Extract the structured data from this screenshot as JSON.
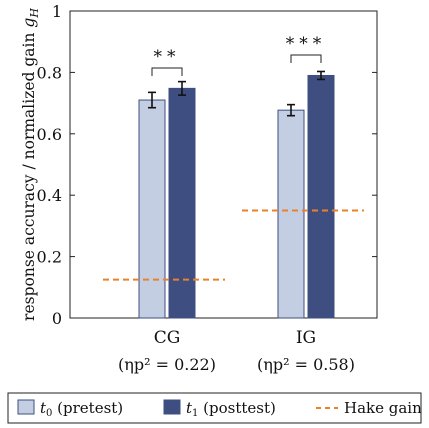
{
  "chart_data": {
    "type": "bar",
    "categories": [
      "CG",
      "IG"
    ],
    "category_notes": [
      "(ηp² = 0.22)",
      "(ηp² = 0.58)"
    ],
    "ylabel": "response accuracy / normalized gain gH",
    "ylim": [
      0,
      1
    ],
    "yticks": [
      0,
      0.2,
      0.4,
      0.6,
      0.8,
      1
    ],
    "ytick_labels": [
      "0",
      "0.2",
      "0.4",
      "0.6",
      "0.8",
      "1"
    ],
    "series": [
      {
        "name": "t0 (pretest)",
        "values": [
          0.71,
          0.677
        ],
        "errors": [
          0.025,
          0.018
        ],
        "color": "#c3cee3"
      },
      {
        "name": "t1 (posttest)",
        "values": [
          0.748,
          0.79
        ],
        "errors": [
          0.022,
          0.013
        ],
        "color": "#3e4e80"
      }
    ],
    "reference_lines": [
      {
        "name": "Hake gain",
        "values": [
          0.125,
          0.35
        ],
        "color": "#e8822a",
        "style": "dashed"
      }
    ],
    "significance": [
      "**",
      "***"
    ],
    "legend": {
      "position": "bottom",
      "entries": [
        "t0 (pretest)",
        "t1 (posttest)",
        "Hake gain"
      ]
    },
    "grid": false
  }
}
